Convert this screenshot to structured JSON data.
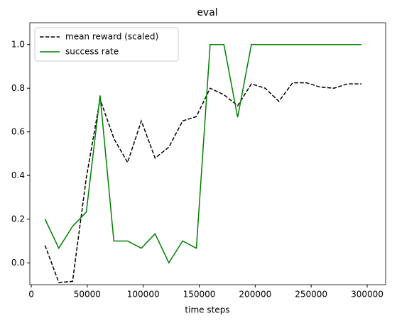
{
  "chart_data": {
    "type": "line",
    "title": "eval",
    "xlabel": "time steps",
    "x": [
      12288,
      24576,
      36864,
      49152,
      61440,
      73728,
      86016,
      98304,
      110592,
      122880,
      135168,
      147456,
      159744,
      172032,
      184320,
      196608,
      208896,
      221184,
      233472,
      245760,
      258048,
      270336,
      282624,
      294912
    ],
    "series": [
      {
        "name": "mean reward (scaled)",
        "color": "#000000",
        "dashed": true,
        "values": [
          0.08,
          -0.09,
          -0.085,
          0.39,
          0.75,
          0.57,
          0.46,
          0.65,
          0.48,
          0.53,
          0.65,
          0.67,
          0.8,
          0.77,
          0.72,
          0.82,
          0.8,
          0.74,
          0.825,
          0.825,
          0.805,
          0.8,
          0.82,
          0.82
        ]
      },
      {
        "name": "success rate",
        "color": "#008000",
        "dashed": false,
        "values": [
          0.2,
          0.067,
          0.167,
          0.233,
          0.767,
          0.1,
          0.1,
          0.067,
          0.133,
          0.0,
          0.1,
          0.067,
          1.0,
          1.0,
          0.667,
          1.0,
          1.0,
          1.0,
          1.0,
          1.0,
          1.0,
          1.0,
          1.0,
          1.0
        ]
      }
    ],
    "xlim": [
      -1300,
      316500
    ],
    "ylim": [
      -0.1,
      1.1
    ],
    "xticks": [
      0,
      50000,
      100000,
      150000,
      200000,
      250000,
      300000
    ],
    "yticks": [
      {
        "value": 0,
        "label": "0.0"
      },
      {
        "value": 0.2,
        "label": "0.2"
      },
      {
        "value": 0.4,
        "label": "0.4"
      },
      {
        "value": 0.6,
        "label": "0.6"
      },
      {
        "value": 0.8,
        "label": "0.8"
      },
      {
        "value": 1,
        "label": "1.0"
      }
    ],
    "legend": "upper left",
    "grid": false
  }
}
